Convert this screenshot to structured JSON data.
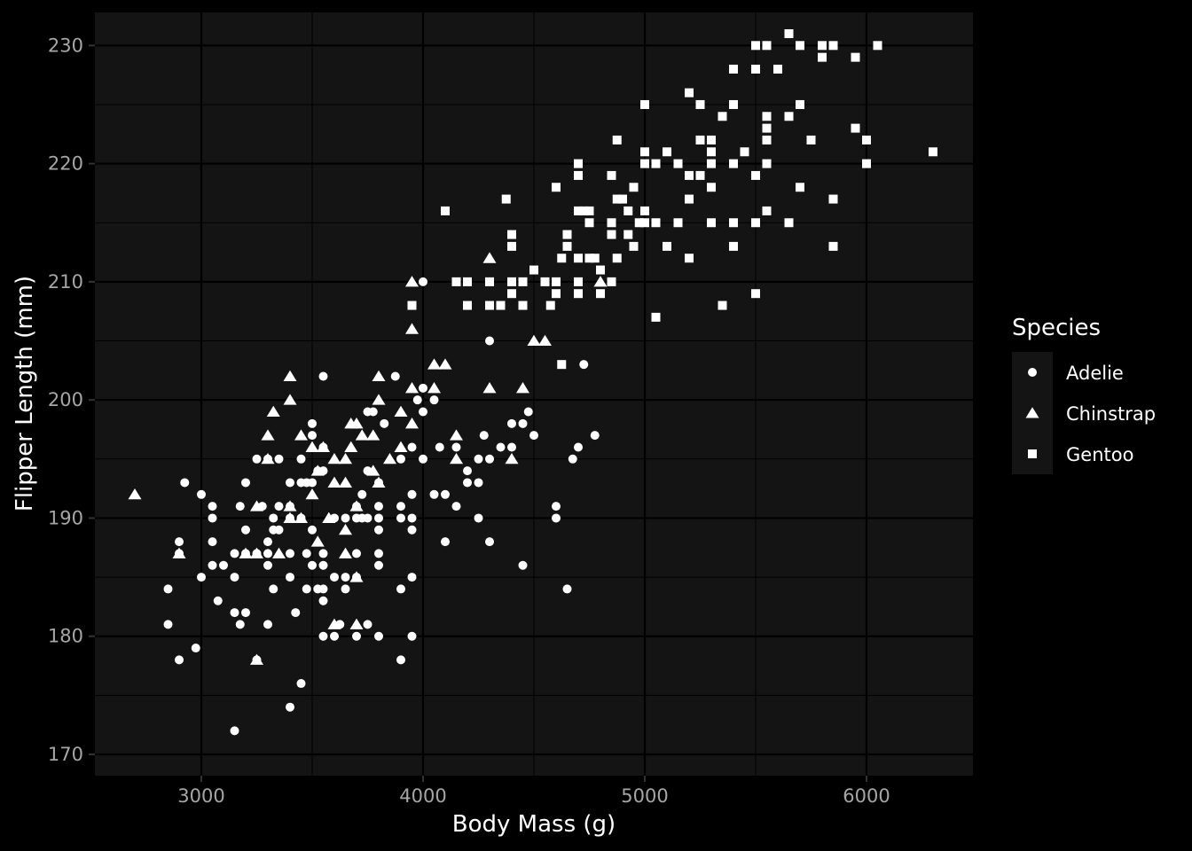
{
  "chart_data": {
    "type": "scatter",
    "xlabel": "Body Mass (g)",
    "ylabel": "Flipper Length (mm)",
    "xlim": [
      2520,
      6480
    ],
    "ylim": [
      168.2,
      232.8
    ],
    "x_major_ticks": [
      3000,
      4000,
      5000,
      6000
    ],
    "x_minor_ticks": [
      3500,
      4500,
      5500
    ],
    "y_major_ticks": [
      170,
      180,
      190,
      200,
      210,
      220,
      230
    ],
    "y_minor_ticks": [
      175,
      185,
      195,
      205,
      215,
      225
    ],
    "grid": true,
    "legend": {
      "title": "Species",
      "position": "right"
    },
    "colors": {
      "page_background": "#000000",
      "panel_background": "#141414",
      "grid": "#000000",
      "points": "#ffffff",
      "tick_labels": "#a6a6a6",
      "legend_key_background": "#141414"
    },
    "series": [
      {
        "name": "Adelie",
        "shape": "circle",
        "points": [
          [
            2850,
            181
          ],
          [
            2850,
            184
          ],
          [
            2900,
            178
          ],
          [
            2900,
            187
          ],
          [
            2900,
            188
          ],
          [
            2925,
            193
          ],
          [
            2975,
            179
          ],
          [
            3000,
            185
          ],
          [
            3000,
            192
          ],
          [
            3050,
            186
          ],
          [
            3050,
            188
          ],
          [
            3050,
            190
          ],
          [
            3050,
            191
          ],
          [
            3075,
            183
          ],
          [
            3100,
            186
          ],
          [
            3150,
            172
          ],
          [
            3150,
            182
          ],
          [
            3150,
            185
          ],
          [
            3150,
            187
          ],
          [
            3175,
            181
          ],
          [
            3175,
            191
          ],
          [
            3200,
            182
          ],
          [
            3200,
            187
          ],
          [
            3200,
            189
          ],
          [
            3200,
            193
          ],
          [
            3250,
            178
          ],
          [
            3250,
            187
          ],
          [
            3250,
            195
          ],
          [
            3275,
            191
          ],
          [
            3300,
            181
          ],
          [
            3300,
            186
          ],
          [
            3300,
            187
          ],
          [
            3300,
            188
          ],
          [
            3300,
            195
          ],
          [
            3325,
            184
          ],
          [
            3325,
            189
          ],
          [
            3325,
            190
          ],
          [
            3350,
            189
          ],
          [
            3350,
            191
          ],
          [
            3350,
            195
          ],
          [
            3400,
            174
          ],
          [
            3400,
            185
          ],
          [
            3400,
            187
          ],
          [
            3400,
            190
          ],
          [
            3400,
            191
          ],
          [
            3400,
            193
          ],
          [
            3425,
            182
          ],
          [
            3450,
            176
          ],
          [
            3450,
            190
          ],
          [
            3450,
            193
          ],
          [
            3450,
            195
          ],
          [
            3475,
            184
          ],
          [
            3475,
            187
          ],
          [
            3475,
            193
          ],
          [
            3500,
            186
          ],
          [
            3500,
            189
          ],
          [
            3500,
            193
          ],
          [
            3500,
            197
          ],
          [
            3500,
            198
          ],
          [
            3525,
            184
          ],
          [
            3525,
            194
          ],
          [
            3550,
            180
          ],
          [
            3550,
            183
          ],
          [
            3550,
            184
          ],
          [
            3550,
            186
          ],
          [
            3550,
            187
          ],
          [
            3550,
            194
          ],
          [
            3550,
            196
          ],
          [
            3550,
            202
          ],
          [
            3600,
            180
          ],
          [
            3600,
            185
          ],
          [
            3600,
            190
          ],
          [
            3625,
            181
          ],
          [
            3650,
            184
          ],
          [
            3650,
            185
          ],
          [
            3650,
            190
          ],
          [
            3700,
            180
          ],
          [
            3700,
            185
          ],
          [
            3700,
            187
          ],
          [
            3700,
            190
          ],
          [
            3700,
            191
          ],
          [
            3725,
            190
          ],
          [
            3725,
            192
          ],
          [
            3750,
            181
          ],
          [
            3750,
            190
          ],
          [
            3750,
            194
          ],
          [
            3750,
            199
          ],
          [
            3775,
            199
          ],
          [
            3800,
            180
          ],
          [
            3800,
            186
          ],
          [
            3800,
            187
          ],
          [
            3800,
            189
          ],
          [
            3800,
            190
          ],
          [
            3800,
            191
          ],
          [
            3800,
            193
          ],
          [
            3825,
            198
          ],
          [
            3875,
            202
          ],
          [
            3900,
            178
          ],
          [
            3900,
            184
          ],
          [
            3900,
            190
          ],
          [
            3900,
            191
          ],
          [
            3900,
            195
          ],
          [
            3950,
            180
          ],
          [
            3950,
            185
          ],
          [
            3950,
            189
          ],
          [
            3950,
            190
          ],
          [
            3950,
            192
          ],
          [
            3950,
            196
          ],
          [
            3975,
            200
          ],
          [
            4000,
            195
          ],
          [
            4000,
            199
          ],
          [
            4000,
            201
          ],
          [
            4000,
            210
          ],
          [
            4050,
            192
          ],
          [
            4050,
            200
          ],
          [
            4075,
            196
          ],
          [
            4100,
            188
          ],
          [
            4100,
            192
          ],
          [
            4150,
            191
          ],
          [
            4150,
            196
          ],
          [
            4200,
            193
          ],
          [
            4200,
            194
          ],
          [
            4250,
            190
          ],
          [
            4250,
            193
          ],
          [
            4250,
            195
          ],
          [
            4275,
            197
          ],
          [
            4300,
            188
          ],
          [
            4300,
            195
          ],
          [
            4300,
            205
          ],
          [
            4350,
            196
          ],
          [
            4400,
            196
          ],
          [
            4400,
            198
          ],
          [
            4450,
            186
          ],
          [
            4450,
            198
          ],
          [
            4475,
            199
          ],
          [
            4500,
            197
          ],
          [
            4600,
            190
          ],
          [
            4600,
            191
          ],
          [
            4650,
            184
          ],
          [
            4675,
            195
          ],
          [
            4700,
            196
          ],
          [
            4725,
            203
          ],
          [
            4775,
            197
          ]
        ]
      },
      {
        "name": "Chinstrap",
        "shape": "triangle",
        "points": [
          [
            2700,
            192
          ],
          [
            2900,
            187
          ],
          [
            3200,
            187
          ],
          [
            3250,
            178
          ],
          [
            3250,
            187
          ],
          [
            3250,
            191
          ],
          [
            3300,
            195
          ],
          [
            3300,
            197
          ],
          [
            3325,
            199
          ],
          [
            3350,
            187
          ],
          [
            3400,
            190
          ],
          [
            3400,
            191
          ],
          [
            3400,
            200
          ],
          [
            3400,
            202
          ],
          [
            3450,
            190
          ],
          [
            3450,
            197
          ],
          [
            3500,
            192
          ],
          [
            3500,
            196
          ],
          [
            3525,
            188
          ],
          [
            3525,
            194
          ],
          [
            3550,
            196
          ],
          [
            3575,
            190
          ],
          [
            3600,
            181
          ],
          [
            3600,
            193
          ],
          [
            3600,
            195
          ],
          [
            3650,
            187
          ],
          [
            3650,
            189
          ],
          [
            3650,
            193
          ],
          [
            3650,
            195
          ],
          [
            3675,
            196
          ],
          [
            3675,
            198
          ],
          [
            3700,
            181
          ],
          [
            3700,
            185
          ],
          [
            3700,
            191
          ],
          [
            3700,
            198
          ],
          [
            3725,
            197
          ],
          [
            3775,
            194
          ],
          [
            3775,
            197
          ],
          [
            3800,
            193
          ],
          [
            3800,
            200
          ],
          [
            3800,
            202
          ],
          [
            3850,
            195
          ],
          [
            3900,
            196
          ],
          [
            3900,
            199
          ],
          [
            3950,
            198
          ],
          [
            3950,
            201
          ],
          [
            3950,
            206
          ],
          [
            3950,
            210
          ],
          [
            4050,
            201
          ],
          [
            4050,
            203
          ],
          [
            4100,
            203
          ],
          [
            4150,
            195
          ],
          [
            4150,
            197
          ],
          [
            4300,
            201
          ],
          [
            4300,
            212
          ],
          [
            4400,
            195
          ],
          [
            4450,
            201
          ],
          [
            4500,
            205
          ],
          [
            4550,
            205
          ],
          [
            4800,
            210
          ]
        ]
      },
      {
        "name": "Gentoo",
        "shape": "square",
        "points": [
          [
            3950,
            208
          ],
          [
            4100,
            216
          ],
          [
            4150,
            210
          ],
          [
            4200,
            208
          ],
          [
            4200,
            210
          ],
          [
            4300,
            208
          ],
          [
            4300,
            210
          ],
          [
            4350,
            208
          ],
          [
            4375,
            217
          ],
          [
            4400,
            209
          ],
          [
            4400,
            210
          ],
          [
            4400,
            213
          ],
          [
            4400,
            214
          ],
          [
            4450,
            208
          ],
          [
            4450,
            210
          ],
          [
            4500,
            211
          ],
          [
            4550,
            210
          ],
          [
            4575,
            208
          ],
          [
            4600,
            209
          ],
          [
            4600,
            210
          ],
          [
            4600,
            218
          ],
          [
            4625,
            203
          ],
          [
            4625,
            212
          ],
          [
            4650,
            213
          ],
          [
            4650,
            214
          ],
          [
            4700,
            209
          ],
          [
            4700,
            210
          ],
          [
            4700,
            212
          ],
          [
            4700,
            216
          ],
          [
            4700,
            219
          ],
          [
            4700,
            220
          ],
          [
            4725,
            216
          ],
          [
            4750,
            212
          ],
          [
            4750,
            215
          ],
          [
            4750,
            216
          ],
          [
            4775,
            212
          ],
          [
            4800,
            209
          ],
          [
            4800,
            211
          ],
          [
            4850,
            210
          ],
          [
            4850,
            214
          ],
          [
            4850,
            215
          ],
          [
            4850,
            219
          ],
          [
            4875,
            212
          ],
          [
            4875,
            217
          ],
          [
            4875,
            222
          ],
          [
            4900,
            217
          ],
          [
            4925,
            214
          ],
          [
            4925,
            216
          ],
          [
            4950,
            213
          ],
          [
            4950,
            218
          ],
          [
            4975,
            215
          ],
          [
            5000,
            215
          ],
          [
            5000,
            216
          ],
          [
            5000,
            220
          ],
          [
            5000,
            221
          ],
          [
            5000,
            225
          ],
          [
            5050,
            207
          ],
          [
            5050,
            215
          ],
          [
            5050,
            220
          ],
          [
            5100,
            213
          ],
          [
            5100,
            221
          ],
          [
            5150,
            215
          ],
          [
            5150,
            220
          ],
          [
            5200,
            212
          ],
          [
            5200,
            217
          ],
          [
            5200,
            219
          ],
          [
            5200,
            226
          ],
          [
            5250,
            219
          ],
          [
            5250,
            222
          ],
          [
            5250,
            225
          ],
          [
            5300,
            215
          ],
          [
            5300,
            218
          ],
          [
            5300,
            220
          ],
          [
            5300,
            221
          ],
          [
            5300,
            222
          ],
          [
            5350,
            208
          ],
          [
            5350,
            224
          ],
          [
            5400,
            213
          ],
          [
            5400,
            215
          ],
          [
            5400,
            220
          ],
          [
            5400,
            225
          ],
          [
            5400,
            228
          ],
          [
            5450,
            221
          ],
          [
            5500,
            209
          ],
          [
            5500,
            215
          ],
          [
            5500,
            219
          ],
          [
            5500,
            228
          ],
          [
            5500,
            230
          ],
          [
            5550,
            216
          ],
          [
            5550,
            220
          ],
          [
            5550,
            222
          ],
          [
            5550,
            223
          ],
          [
            5550,
            224
          ],
          [
            5550,
            230
          ],
          [
            5600,
            228
          ],
          [
            5650,
            215
          ],
          [
            5650,
            224
          ],
          [
            5650,
            231
          ],
          [
            5700,
            218
          ],
          [
            5700,
            225
          ],
          [
            5700,
            230
          ],
          [
            5750,
            222
          ],
          [
            5800,
            229
          ],
          [
            5800,
            230
          ],
          [
            5850,
            213
          ],
          [
            5850,
            217
          ],
          [
            5850,
            230
          ],
          [
            5950,
            223
          ],
          [
            5950,
            229
          ],
          [
            6000,
            220
          ],
          [
            6000,
            222
          ],
          [
            6050,
            230
          ],
          [
            6300,
            221
          ]
        ]
      }
    ]
  }
}
